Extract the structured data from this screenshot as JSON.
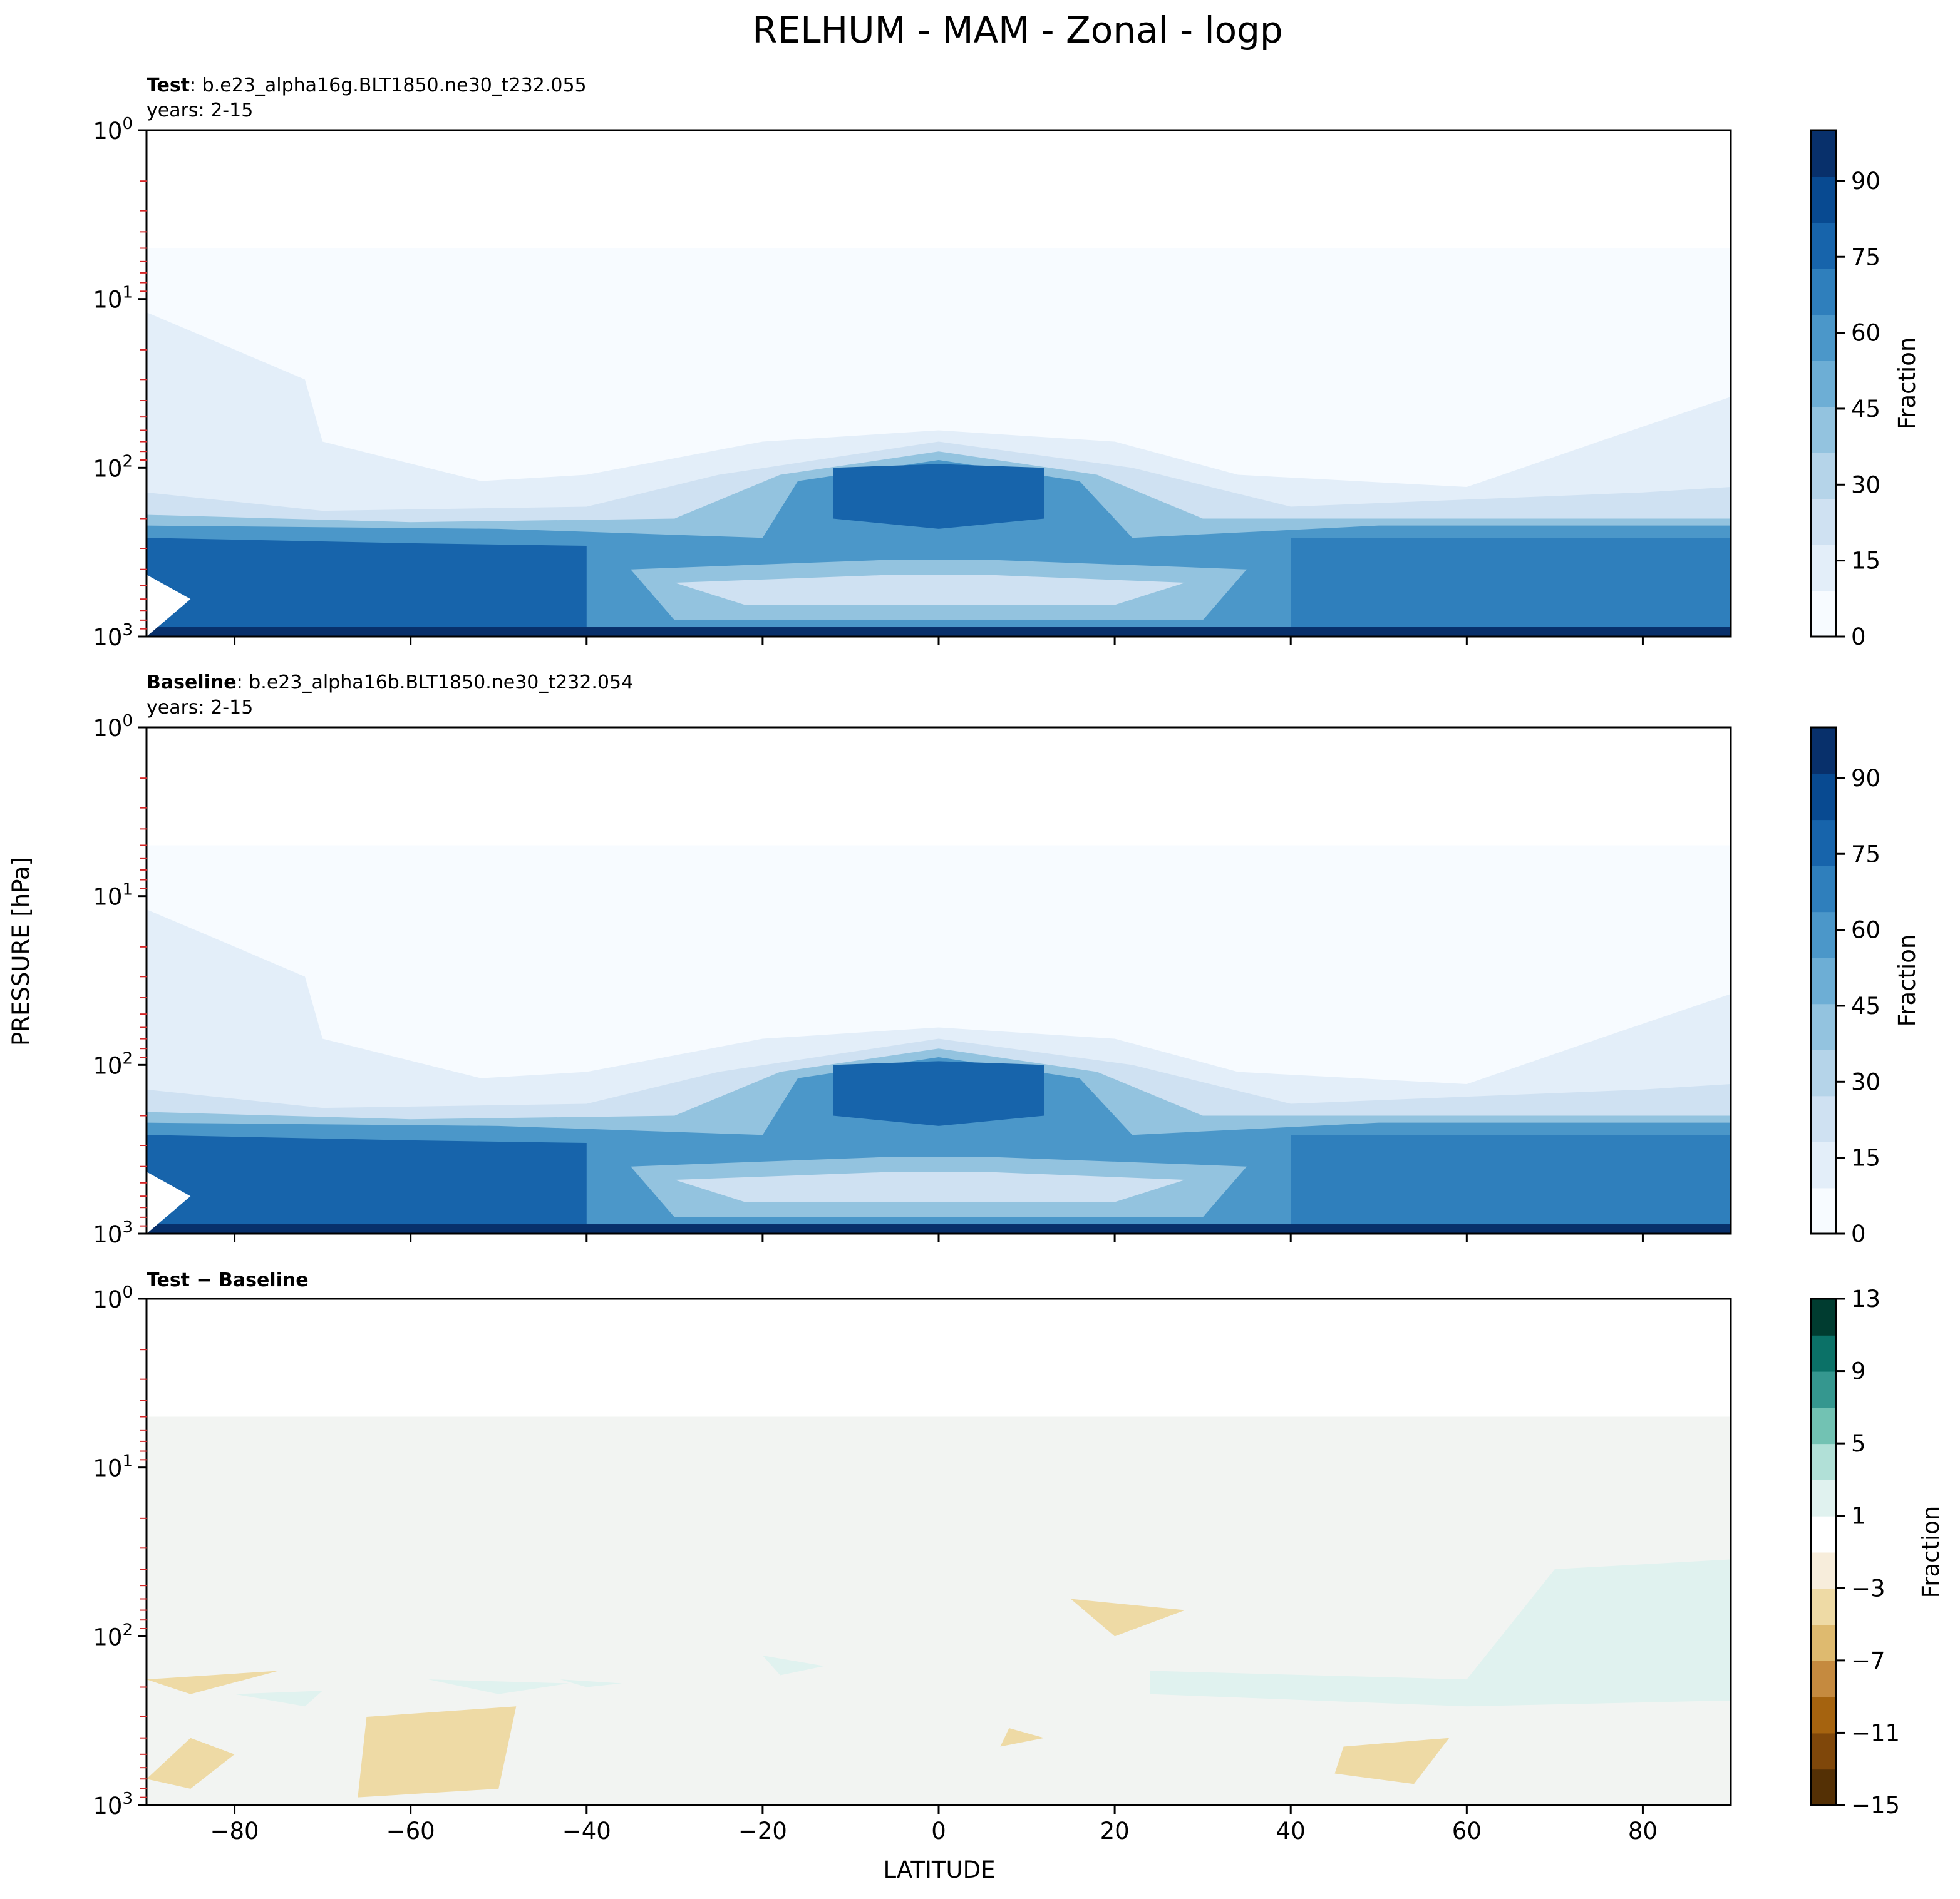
{
  "figure": {
    "title": "RELHUM - MAM - Zonal - logp",
    "ylabel": "PRESSURE [hPa]",
    "xlabel": "LATITUDE"
  },
  "chart_data": [
    {
      "type": "heatmap",
      "panel": "test",
      "header_bold": "Test",
      "header_text": ": b.e23_alpha16g.BLT1850.ne30_t232.055",
      "subheader": "years: 2-15",
      "colormap": "Blues",
      "x_ticks": [
        "−80",
        "−60",
        "−40",
        "−20",
        "0",
        "20",
        "40",
        "60",
        "80"
      ],
      "y_ticks": [
        {
          "base": "10",
          "exp": "0"
        },
        {
          "base": "10",
          "exp": "1"
        },
        {
          "base": "10",
          "exp": "2"
        },
        {
          "base": "10",
          "exp": "3"
        }
      ],
      "colorbar_label": "Fraction",
      "colorbar_ticks": [
        "0",
        "15",
        "30",
        "45",
        "60",
        "75",
        "90"
      ],
      "colorbar_range": [
        0,
        100
      ],
      "colors": [
        "#f7fbff",
        "#e3eef9",
        "#cfe1f2",
        "#b5d4e9",
        "#93c3df",
        "#6daed5",
        "#4b97c9",
        "#2f7fbc",
        "#1764ab",
        "#084a91",
        "#08306b"
      ],
      "xlim": [
        -90,
        90
      ],
      "ylim": [
        1000,
        1
      ]
    },
    {
      "type": "heatmap",
      "panel": "baseline",
      "header_bold": "Baseline",
      "header_text": ": b.e23_alpha16b.BLT1850.ne30_t232.054",
      "subheader": "years: 2-15",
      "colormap": "Blues",
      "x_ticks": [
        "−80",
        "−60",
        "−40",
        "−20",
        "0",
        "20",
        "40",
        "60",
        "80"
      ],
      "y_ticks": [
        {
          "base": "10",
          "exp": "0"
        },
        {
          "base": "10",
          "exp": "1"
        },
        {
          "base": "10",
          "exp": "2"
        },
        {
          "base": "10",
          "exp": "3"
        }
      ],
      "colorbar_label": "Fraction",
      "colorbar_ticks": [
        "0",
        "15",
        "30",
        "45",
        "60",
        "75",
        "90"
      ],
      "colorbar_range": [
        0,
        100
      ],
      "colors": [
        "#f7fbff",
        "#e3eef9",
        "#cfe1f2",
        "#b5d4e9",
        "#93c3df",
        "#6daed5",
        "#4b97c9",
        "#2f7fbc",
        "#1764ab",
        "#084a91",
        "#08306b"
      ],
      "xlim": [
        -90,
        90
      ],
      "ylim": [
        1000,
        1
      ]
    },
    {
      "type": "heatmap",
      "panel": "diff",
      "header_bold": "Test − Baseline",
      "header_text": "",
      "subheader": "",
      "colormap": "BrBG",
      "x_ticks": [
        "−80",
        "−60",
        "−40",
        "−20",
        "0",
        "20",
        "40",
        "60",
        "80"
      ],
      "y_ticks": [
        {
          "base": "10",
          "exp": "0"
        },
        {
          "base": "10",
          "exp": "1"
        },
        {
          "base": "10",
          "exp": "2"
        },
        {
          "base": "10",
          "exp": "3"
        }
      ],
      "colorbar_label": "Fraction",
      "colorbar_ticks": [
        "−15",
        "−11",
        "−7",
        "−3",
        "1",
        "5",
        "9",
        "13"
      ],
      "colorbar_range": [
        -15,
        13
      ],
      "colors": [
        "#543005",
        "#7f470a",
        "#a5630f",
        "#c58a3f",
        "#deba6f",
        "#eedaa5",
        "#f7eddb",
        "#ffffff",
        "#e0f2ef",
        "#b1e0d7",
        "#72c2b3",
        "#35978f",
        "#0b7167",
        "#003c30"
      ],
      "xlim": [
        -90,
        90
      ],
      "ylim": [
        1000,
        1
      ]
    }
  ]
}
